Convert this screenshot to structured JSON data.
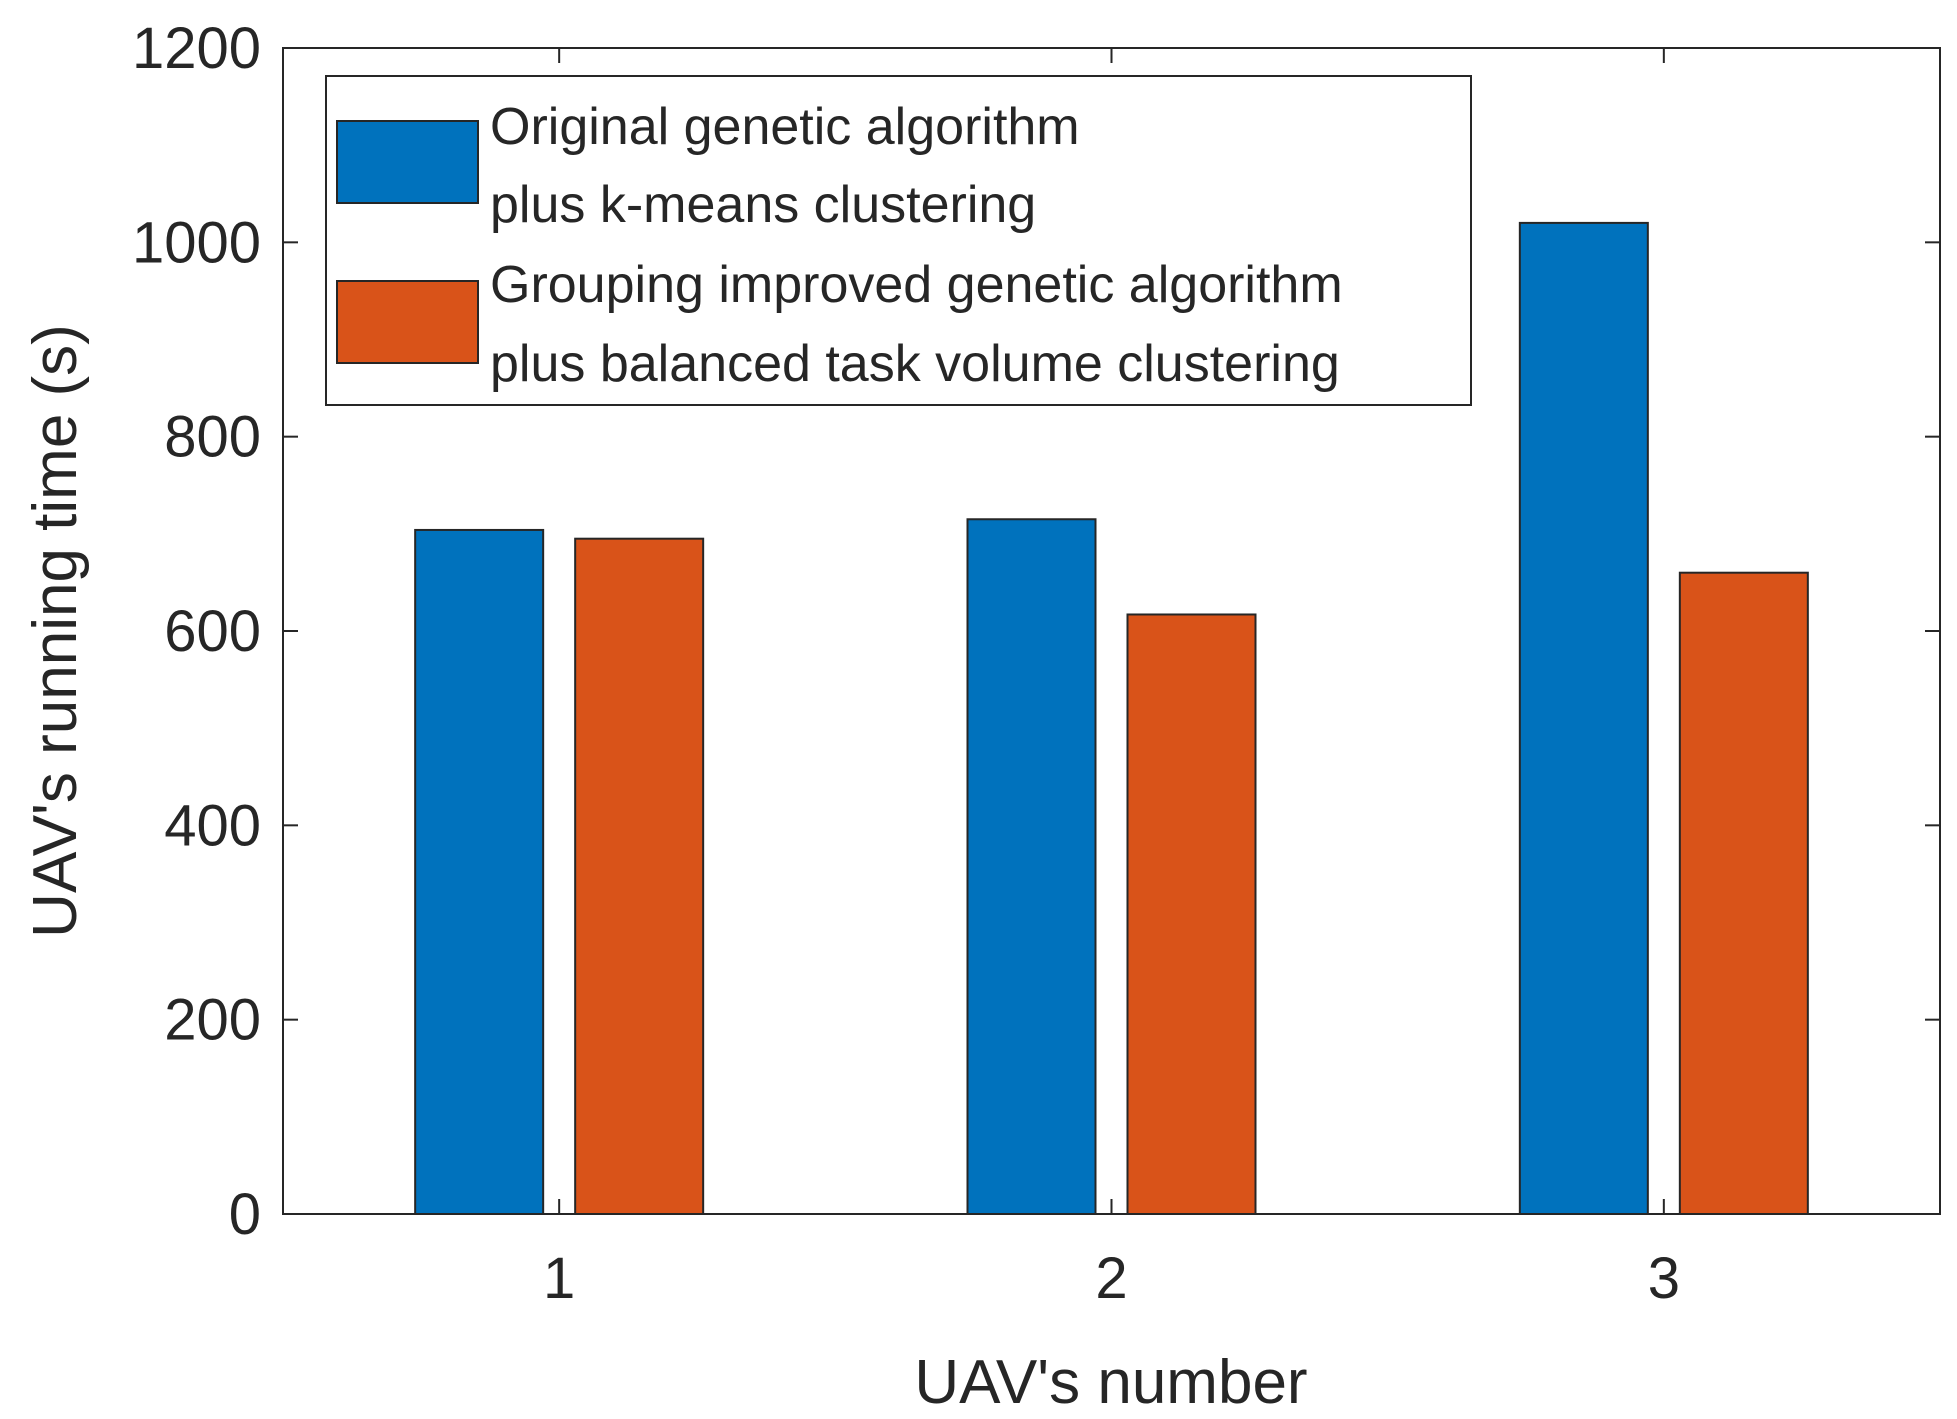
{
  "chart_data": {
    "type": "bar",
    "title": "",
    "xlabel": "UAV's number",
    "ylabel": "UAV's running time (s)",
    "categories": [
      "1",
      "2",
      "3"
    ],
    "ylim": [
      0,
      1200
    ],
    "yticks": [
      0,
      200,
      400,
      600,
      800,
      1000,
      1200
    ],
    "grid": false,
    "legend_position": "top-left",
    "series": [
      {
        "name": "Original genetic algorithm plus k-means clustering",
        "legend_lines": [
          "Original genetic algorithm",
          "plus k-means clustering"
        ],
        "color": "#0072BD",
        "values": [
          704,
          715,
          1020
        ]
      },
      {
        "name": "Grouping improved genetic algorithm plus balanced task volume clustering",
        "legend_lines": [
          "Grouping improved genetic algorithm",
          "plus balanced task volume clustering"
        ],
        "color": "#D95319",
        "values": [
          695,
          617,
          660
        ]
      }
    ]
  }
}
